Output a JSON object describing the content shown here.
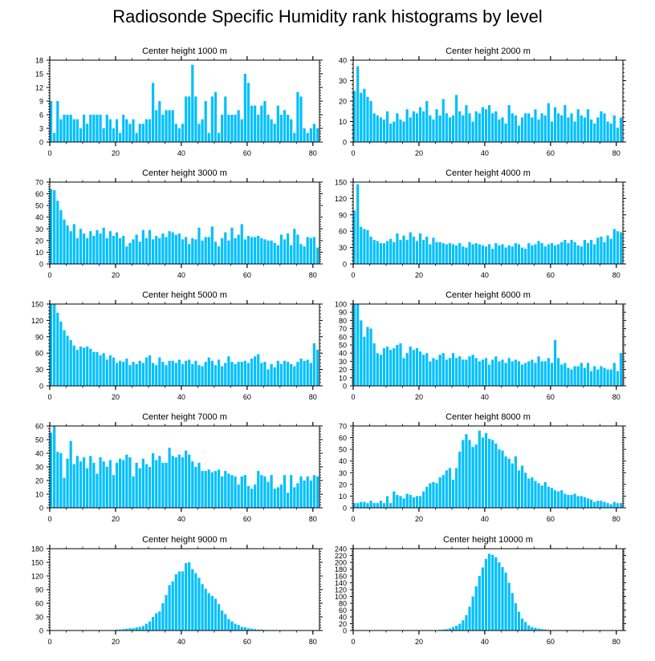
{
  "title": "Radiosonde Specific Humidity rank histograms by level",
  "bar_color": "#00bfff",
  "chart_data": [
    {
      "type": "bar",
      "title": "Center height 1000 m",
      "xlim": [
        0,
        82
      ],
      "ylim": [
        0,
        18
      ],
      "yticks": [
        0,
        3,
        6,
        9,
        12,
        15,
        18
      ],
      "xticks": [
        0,
        20,
        40,
        60,
        80
      ],
      "x_start": 0,
      "values": [
        9,
        2,
        9,
        5,
        6,
        6,
        6,
        5,
        5,
        3,
        6,
        4,
        6,
        6,
        6,
        6,
        3,
        6,
        5,
        3,
        5,
        2,
        6,
        5,
        4,
        5,
        2,
        4,
        4,
        5,
        5,
        13,
        7,
        9,
        6,
        7,
        7,
        7,
        4,
        3,
        4,
        10,
        10,
        17,
        10,
        4,
        5,
        9,
        2,
        10,
        11,
        2,
        6,
        10,
        6,
        6,
        6,
        7,
        5,
        15,
        13,
        8,
        8,
        6,
        8,
        9,
        6,
        5,
        4,
        8,
        6,
        7,
        6,
        5,
        2,
        11,
        10,
        3,
        2,
        3,
        4,
        3
      ]
    },
    {
      "type": "bar",
      "title": "Center height 2000 m",
      "xlim": [
        0,
        82
      ],
      "ylim": [
        0,
        40
      ],
      "yticks": [
        0,
        10,
        20,
        30,
        40
      ],
      "xticks": [
        0,
        20,
        40,
        60,
        80
      ],
      "x_start": 0,
      "values": [
        25,
        37,
        24,
        26,
        22,
        20,
        14,
        13,
        12,
        11,
        15,
        9,
        10,
        14,
        11,
        10,
        16,
        12,
        15,
        14,
        17,
        15,
        20,
        13,
        11,
        16,
        13,
        21,
        14,
        12,
        13,
        23,
        15,
        13,
        18,
        14,
        10,
        15,
        14,
        17,
        16,
        18,
        14,
        15,
        11,
        12,
        9,
        18,
        14,
        13,
        8,
        12,
        14,
        14,
        12,
        16,
        11,
        14,
        13,
        19,
        10,
        17,
        14,
        13,
        18,
        12,
        14,
        10,
        16,
        13,
        12,
        16,
        11,
        9,
        12,
        15,
        14,
        10,
        9,
        13,
        7,
        12
      ]
    },
    {
      "type": "bar",
      "title": "Center height 3000 m",
      "xlim": [
        0,
        82
      ],
      "ylim": [
        0,
        70
      ],
      "yticks": [
        0,
        10,
        20,
        30,
        40,
        50,
        60,
        70
      ],
      "xticks": [
        0,
        20,
        40,
        60,
        80
      ],
      "x_start": 0,
      "values": [
        64,
        63,
        54,
        46,
        38,
        33,
        28,
        34,
        22,
        30,
        26,
        22,
        28,
        24,
        29,
        26,
        31,
        22,
        28,
        24,
        27,
        22,
        24,
        15,
        18,
        21,
        25,
        19,
        29,
        22,
        29,
        21,
        24,
        22,
        26,
        23,
        28,
        27,
        25,
        26,
        21,
        23,
        17,
        22,
        21,
        31,
        20,
        23,
        23,
        32,
        19,
        15,
        22,
        27,
        20,
        31,
        22,
        25,
        34,
        21,
        24,
        23,
        23,
        24,
        22,
        21,
        20,
        20,
        18,
        16,
        25,
        21,
        26,
        16,
        30,
        25,
        17,
        15,
        23,
        22,
        23,
        14
      ]
    },
    {
      "type": "bar",
      "title": "Center height 4000 m",
      "xlim": [
        0,
        82
      ],
      "ylim": [
        0,
        150
      ],
      "yticks": [
        0,
        30,
        60,
        90,
        120,
        150
      ],
      "xticks": [
        0,
        20,
        40,
        60,
        80
      ],
      "x_start": 0,
      "values": [
        98,
        146,
        68,
        64,
        62,
        50,
        44,
        42,
        38,
        38,
        42,
        46,
        40,
        56,
        44,
        52,
        44,
        58,
        50,
        42,
        56,
        44,
        50,
        36,
        48,
        40,
        40,
        38,
        36,
        38,
        36,
        34,
        38,
        32,
        30,
        40,
        36,
        38,
        36,
        34,
        32,
        36,
        28,
        38,
        34,
        36,
        30,
        34,
        32,
        38,
        36,
        30,
        28,
        38,
        34,
        36,
        42,
        38,
        32,
        36,
        38,
        34,
        36,
        40,
        44,
        38,
        44,
        40,
        34,
        32,
        44,
        38,
        44,
        36,
        48,
        50,
        40,
        52,
        46,
        64,
        60,
        58
      ]
    },
    {
      "type": "bar",
      "title": "Center height 5000 m",
      "xlim": [
        0,
        82
      ],
      "ylim": [
        0,
        150
      ],
      "yticks": [
        0,
        30,
        60,
        90,
        120,
        150
      ],
      "xticks": [
        0,
        20,
        40,
        60,
        80
      ],
      "x_start": 0,
      "values": [
        150,
        150,
        134,
        118,
        102,
        92,
        84,
        74,
        66,
        72,
        70,
        72,
        68,
        62,
        62,
        56,
        60,
        48,
        56,
        52,
        42,
        46,
        44,
        50,
        38,
        44,
        40,
        46,
        42,
        52,
        56,
        42,
        38,
        52,
        44,
        38,
        46,
        46,
        42,
        48,
        40,
        46,
        48,
        40,
        46,
        38,
        36,
        44,
        52,
        46,
        38,
        48,
        36,
        42,
        54,
        44,
        40,
        44,
        44,
        46,
        42,
        50,
        54,
        58,
        42,
        44,
        30,
        40,
        34,
        46,
        40,
        46,
        44,
        40,
        36,
        44,
        50,
        46,
        48,
        42,
        78,
        66
      ]
    },
    {
      "type": "bar",
      "title": "Center height 6000 m",
      "xlim": [
        0,
        82
      ],
      "ylim": [
        0,
        100
      ],
      "yticks": [
        0,
        10,
        20,
        30,
        40,
        50,
        60,
        70,
        80,
        90,
        100
      ],
      "xticks": [
        0,
        20,
        40,
        60,
        80
      ],
      "x_start": 0,
      "values": [
        100,
        100,
        80,
        60,
        72,
        70,
        52,
        40,
        38,
        46,
        48,
        44,
        46,
        50,
        52,
        34,
        40,
        48,
        44,
        46,
        42,
        38,
        40,
        30,
        34,
        32,
        38,
        40,
        32,
        34,
        40,
        34,
        36,
        32,
        32,
        36,
        38,
        34,
        30,
        32,
        34,
        26,
        32,
        36,
        30,
        32,
        28,
        34,
        30,
        32,
        30,
        26,
        28,
        30,
        32,
        28,
        36,
        30,
        30,
        34,
        28,
        56,
        34,
        26,
        28,
        22,
        20,
        24,
        24,
        28,
        22,
        28,
        18,
        24,
        20,
        24,
        22,
        20,
        20,
        28,
        18,
        40
      ]
    },
    {
      "type": "bar",
      "title": "Center height 7000 m",
      "xlim": [
        0,
        82
      ],
      "ylim": [
        0,
        60
      ],
      "yticks": [
        0,
        10,
        20,
        30,
        40,
        50,
        60
      ],
      "xticks": [
        0,
        20,
        40,
        60,
        80
      ],
      "x_start": 0,
      "values": [
        55,
        60,
        41,
        40,
        22,
        36,
        49,
        32,
        38,
        34,
        37,
        29,
        38,
        33,
        25,
        37,
        34,
        30,
        35,
        24,
        33,
        36,
        35,
        39,
        37,
        23,
        33,
        29,
        36,
        32,
        30,
        40,
        35,
        38,
        33,
        33,
        44,
        38,
        37,
        39,
        37,
        42,
        39,
        34,
        30,
        33,
        27,
        27,
        28,
        26,
        27,
        28,
        23,
        27,
        25,
        24,
        23,
        17,
        23,
        24,
        16,
        14,
        17,
        27,
        24,
        23,
        19,
        24,
        14,
        15,
        17,
        24,
        11,
        24,
        15,
        18,
        23,
        20,
        23,
        20,
        24,
        23
      ]
    },
    {
      "type": "bar",
      "title": "Center height 8000 m",
      "xlim": [
        0,
        82
      ],
      "ylim": [
        0,
        70
      ],
      "yticks": [
        0,
        10,
        20,
        30,
        40,
        50,
        60,
        70
      ],
      "xticks": [
        0,
        20,
        40,
        60,
        80
      ],
      "x_start": 0,
      "values": [
        4,
        4,
        5,
        5,
        4,
        6,
        4,
        4,
        6,
        4,
        10,
        4,
        14,
        11,
        10,
        8,
        12,
        11,
        9,
        10,
        10,
        14,
        18,
        21,
        22,
        21,
        26,
        28,
        32,
        34,
        24,
        34,
        48,
        58,
        63,
        58,
        52,
        54,
        66,
        60,
        64,
        59,
        58,
        55,
        50,
        49,
        44,
        42,
        38,
        44,
        32,
        36,
        30,
        25,
        26,
        23,
        21,
        19,
        22,
        18,
        17,
        15,
        14,
        15,
        12,
        11,
        11,
        12,
        10,
        10,
        9,
        8,
        7,
        5,
        6,
        6,
        5,
        4,
        3,
        5,
        4,
        4
      ]
    },
    {
      "type": "bar",
      "title": "Center height 9000 m",
      "xlim": [
        0,
        82
      ],
      "ylim": [
        0,
        180
      ],
      "yticks": [
        0,
        30,
        60,
        90,
        120,
        150,
        180
      ],
      "xticks": [
        0,
        20,
        40,
        60,
        80
      ],
      "x_start": 0,
      "values": [
        0,
        0,
        0,
        0,
        0,
        0,
        0,
        0,
        0,
        0,
        0,
        0,
        0,
        0,
        0,
        0,
        0,
        0,
        0,
        1,
        2,
        2,
        3,
        4,
        5,
        5,
        7,
        8,
        10,
        15,
        20,
        30,
        38,
        42,
        60,
        78,
        100,
        108,
        124,
        130,
        130,
        148,
        150,
        135,
        126,
        116,
        102,
        92,
        82,
        76,
        70,
        58,
        44,
        36,
        25,
        20,
        15,
        12,
        8,
        7,
        5,
        4,
        3,
        2,
        2,
        1,
        1,
        1,
        1,
        0,
        0,
        0,
        0,
        0,
        0,
        0,
        0,
        0,
        0,
        0,
        0,
        0
      ]
    },
    {
      "type": "bar",
      "title": "Center height 10000 m",
      "xlim": [
        0,
        82
      ],
      "ylim": [
        0,
        240
      ],
      "yticks": [
        0,
        20,
        40,
        60,
        80,
        100,
        120,
        140,
        160,
        180,
        200,
        220,
        240
      ],
      "xticks": [
        0,
        20,
        40,
        60,
        80
      ],
      "x_start": 0,
      "values": [
        0,
        0,
        0,
        0,
        0,
        0,
        0,
        0,
        0,
        0,
        0,
        0,
        0,
        0,
        0,
        0,
        0,
        0,
        0,
        0,
        0,
        0,
        0,
        0,
        0,
        1,
        2,
        3,
        4,
        6,
        10,
        14,
        20,
        30,
        45,
        70,
        100,
        130,
        160,
        185,
        210,
        225,
        222,
        215,
        200,
        186,
        170,
        140,
        110,
        80,
        55,
        35,
        25,
        15,
        10,
        8,
        6,
        4,
        3,
        2,
        1,
        1,
        1,
        1,
        0,
        0,
        0,
        0,
        0,
        1,
        0,
        0,
        0,
        1,
        0,
        0,
        0,
        0,
        0,
        0,
        0,
        0
      ]
    }
  ]
}
